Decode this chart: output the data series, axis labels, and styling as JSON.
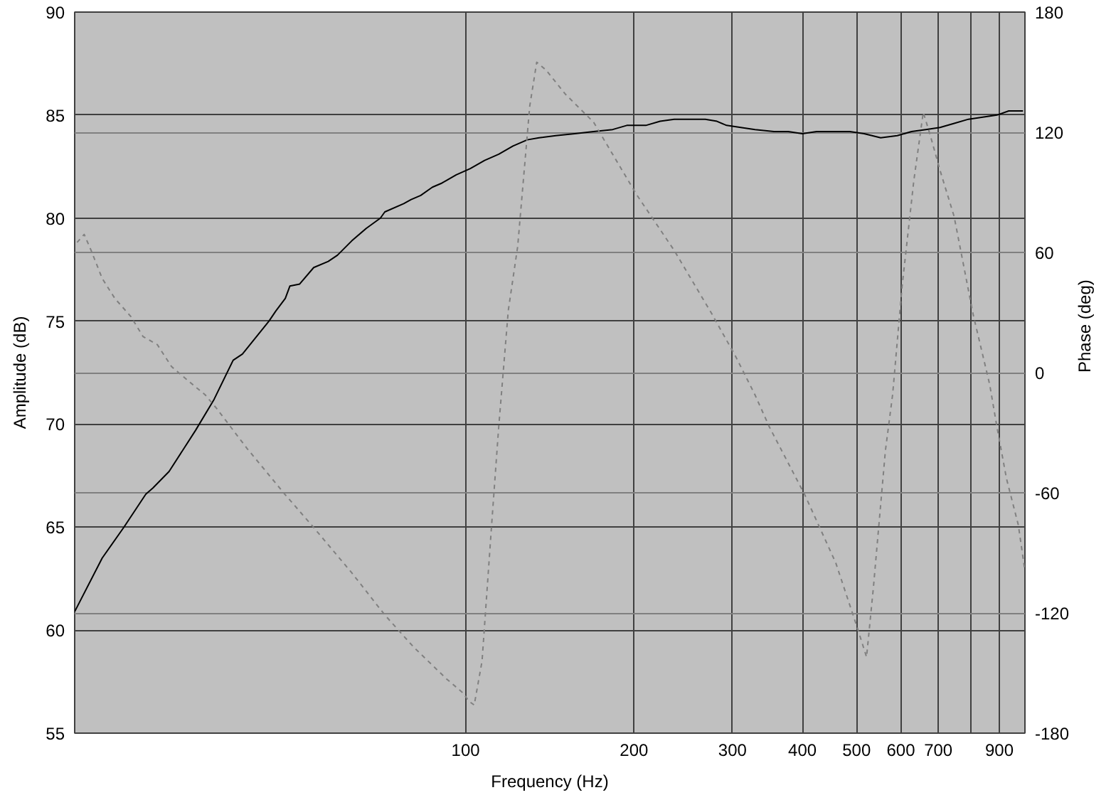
{
  "chart_data": {
    "type": "line",
    "xlabel": "Frequency (Hz)",
    "ylabel": "Amplitude (dB)",
    "y2label": "Phase (deg)",
    "log": "x",
    "xlim": [
      20,
      1000
    ],
    "xticks": [
      100,
      200,
      300,
      400,
      500,
      600,
      700,
      {
        "value": 800,
        "label": null
      },
      900
    ],
    "ylim": [
      55,
      90
    ],
    "yticks": [
      55,
      60,
      65,
      70,
      75,
      80,
      85,
      90
    ],
    "y2lim": [
      -180,
      180
    ],
    "y2ticks": [
      -180,
      -120,
      -60,
      0,
      60,
      120,
      180
    ],
    "grid": true,
    "series": [
      {
        "color": "#000000",
        "line_style": "solid",
        "axis": "y",
        "x": [
          20,
          22.4,
          24.5,
          26.8,
          27.6,
          29.5,
          32.9,
          35.5,
          38.4,
          39.9,
          44.5,
          45.8,
          47.6,
          48.5,
          50.5,
          53.5,
          56.8,
          59,
          62.6,
          66.4,
          70.4,
          71.7,
          77.5,
          79.9,
          83.1,
          87.2,
          90.7,
          96.2,
          101.9,
          108.1,
          114.6,
          121.5,
          128.9,
          135.3,
          144.9,
          156.7,
          169.4,
          183.2,
          194.2,
          210,
          222.7,
          236,
          250.4,
          268.2,
          281.4,
          292.8,
          310.4,
          329.2,
          355.8,
          377.4,
          400,
          424.2,
          458.8,
          486.4,
          515.8,
          552.2,
          591.2,
          627,
          664.8,
          705,
          747.4,
          792.6,
          840.4,
          891.2,
          935.4,
          992
        ],
        "values": [
          60.9,
          63.5,
          65.0,
          66.6,
          66.9,
          67.7,
          69.7,
          71.2,
          73.1,
          73.4,
          75.0,
          75.5,
          76.1,
          76.7,
          76.8,
          77.6,
          77.9,
          78.2,
          78.9,
          79.5,
          80.0,
          80.3,
          80.7,
          80.9,
          81.1,
          81.5,
          81.7,
          82.1,
          82.4,
          82.8,
          83.1,
          83.5,
          83.8,
          83.9,
          84.0,
          84.1,
          84.2,
          84.3,
          84.5,
          84.5,
          84.7,
          84.8,
          84.8,
          84.8,
          84.7,
          84.5,
          84.4,
          84.3,
          84.2,
          84.2,
          84.1,
          84.2,
          84.2,
          84.2,
          84.1,
          83.9,
          84.0,
          84.2,
          84.3,
          84.4,
          84.6,
          84.8,
          84.9,
          85.0,
          85.2,
          85.2
        ]
      },
      {
        "color": "#808080",
        "line_style": "dashed",
        "axis": "y2",
        "x": [
          20.2,
          20.8,
          21.4,
          22.4,
          23.6,
          25.2,
          26.5,
          28.1,
          29.8,
          32.2,
          34.2,
          35.9,
          40.7,
          47.6,
          53,
          62.6,
          71.7,
          80.7,
          92.5,
          99,
          101.3,
          103.6,
          107,
          111.3,
          114.6,
          119.2,
          123.9,
          130.2,
          134,
          139.3,
          150.8,
          169.4,
          202,
          236,
          276,
          304,
          329,
          349,
          404,
          459,
          501,
          521,
          536,
          563,
          580,
          603,
          633,
          658,
          678,
          705,
          747,
          808,
          865,
          891,
          927,
          973,
          1000
        ],
        "values": [
          65,
          69,
          61,
          47,
          37,
          28,
          18,
          14,
          3,
          -5,
          -11,
          -18,
          -38,
          -61,
          -76,
          -100,
          -121,
          -137,
          -153,
          -160,
          -164,
          -166,
          -144,
          -76,
          -27,
          31,
          63,
          133,
          155,
          151,
          139,
          125,
          89,
          61,
          29,
          8,
          -11,
          -27,
          -61,
          -95,
          -127,
          -142,
          -107,
          -39,
          -11,
          43,
          96,
          130,
          118,
          101,
          78,
          29,
          -6,
          -27,
          -53,
          -76,
          -99
        ]
      }
    ]
  }
}
